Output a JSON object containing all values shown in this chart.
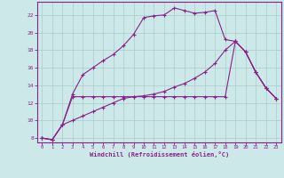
{
  "xlabel": "Windchill (Refroidissement éolien,°C)",
  "background_color": "#cce8e8",
  "grid_color": "#aacccc",
  "line_color": "#882288",
  "x_ticks": [
    0,
    1,
    2,
    3,
    4,
    5,
    6,
    7,
    8,
    9,
    10,
    11,
    12,
    13,
    14,
    15,
    16,
    17,
    18,
    19,
    20,
    21,
    22,
    23
  ],
  "y_ticks": [
    8,
    10,
    12,
    14,
    16,
    18,
    20,
    22
  ],
  "xlim": [
    -0.5,
    23.5
  ],
  "ylim": [
    7.5,
    23.5
  ],
  "line1_y": [
    8.0,
    7.8,
    9.5,
    13.0,
    15.2,
    16.0,
    16.8,
    17.5,
    18.5,
    19.8,
    21.7,
    21.9,
    22.0,
    22.8,
    22.5,
    22.2,
    22.3,
    22.5,
    19.2,
    19.0,
    17.8,
    15.5,
    13.7,
    12.5
  ],
  "line2_y": [
    8.0,
    7.8,
    9.5,
    12.7,
    12.7,
    12.7,
    12.7,
    12.7,
    12.7,
    12.7,
    12.7,
    12.7,
    12.7,
    12.7,
    12.7,
    12.7,
    12.7,
    12.7,
    12.7,
    19.0,
    17.8,
    15.5,
    13.7,
    12.5
  ],
  "line3_y": [
    8.0,
    7.8,
    9.5,
    10.0,
    10.5,
    11.0,
    11.5,
    12.0,
    12.5,
    12.7,
    12.8,
    13.0,
    13.3,
    13.8,
    14.2,
    14.8,
    15.5,
    16.5,
    18.0,
    19.0,
    17.8,
    15.5,
    13.7,
    12.5
  ]
}
